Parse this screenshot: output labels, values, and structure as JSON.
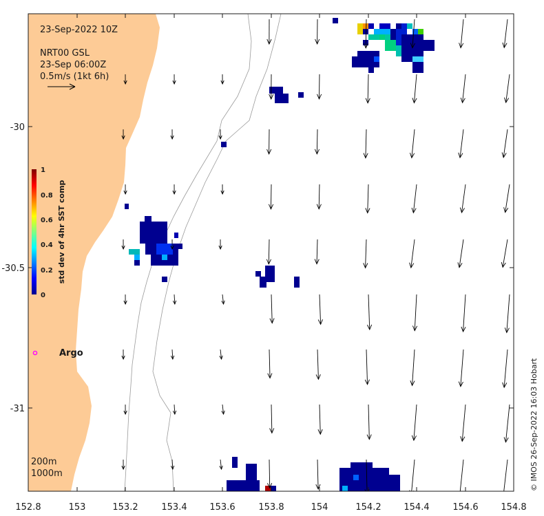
{
  "map": {
    "date_label": "23-Sep-2022 10Z",
    "source_label": "NRT00 GSL",
    "time_label": "23-Sep 06:00Z",
    "scale_label": "0.5m/s (1kt 6h)",
    "argo_label": "Argo",
    "contour_labels": [
      "200m",
      "1000m"
    ],
    "credit": "© IMOS 26-Sep-2022 16:03 Hobart",
    "x_ticks": [
      "152.8",
      "153",
      "153.2",
      "153.4",
      "153.6",
      "153.8",
      "154",
      "154.2",
      "154.4",
      "154.6",
      "154.8"
    ],
    "y_ticks": [
      "-30",
      "-30.5",
      "-31"
    ],
    "colorbar": {
      "label": "std dev of 4hr SST comp",
      "ticks": [
        "1",
        "0.8",
        "0.6",
        "0.4",
        "0.2",
        "0"
      ]
    },
    "colors": {
      "land": "#fdcb96",
      "ocean": "#ffffff",
      "argo": "#ff00ff",
      "contour": "#9a9a9a"
    }
  }
}
